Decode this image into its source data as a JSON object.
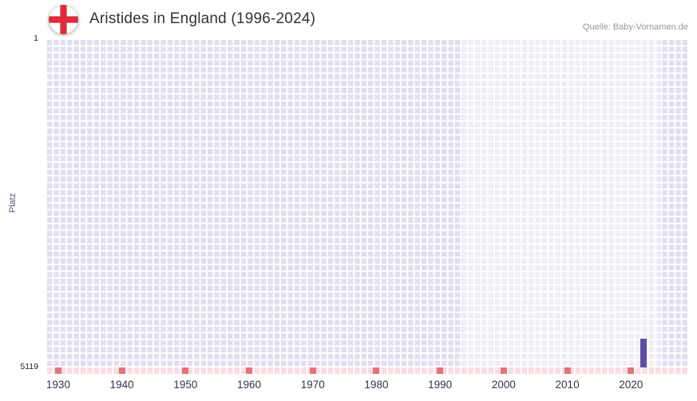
{
  "header": {
    "title": "Aristides in England (1996-2024)",
    "source": "Quelle: Baby-Vornamen.de",
    "flag_icon": "england-flag-icon"
  },
  "chart_data": {
    "type": "bar",
    "title": "Aristides in England (1996-2024)",
    "xlabel": "",
    "ylabel": "Platz",
    "y_axis": {
      "min": 1,
      "max": 5119,
      "inverted": true,
      "top_label": "1",
      "bottom_label": "5119"
    },
    "x_axis": {
      "min": 1928,
      "max": 2029,
      "ticks": [
        1930,
        1940,
        1950,
        1960,
        1970,
        1980,
        1990,
        2000,
        2010,
        2020
      ]
    },
    "highlight_region": {
      "from": 1993.5,
      "to": 2024.5
    },
    "series": [
      {
        "name": "Platz",
        "points": [
          {
            "year": 2022,
            "rank": 4700
          }
        ]
      }
    ],
    "bottom_strip": {
      "mark_years": [
        1930,
        1940,
        1950,
        1960,
        1970,
        1980,
        1990,
        2000,
        2010,
        2020
      ]
    },
    "colors": {
      "grid_cell": "#e1def0",
      "grid_line": "#ffffff",
      "highlight": "rgba(255,255,255,0.45)",
      "bar": "#5f4ea5",
      "strip_bg": "#fbdce2",
      "strip_mark": "#e4717c",
      "axis_text": "#333347",
      "ylabel_text": "#55557a"
    }
  }
}
